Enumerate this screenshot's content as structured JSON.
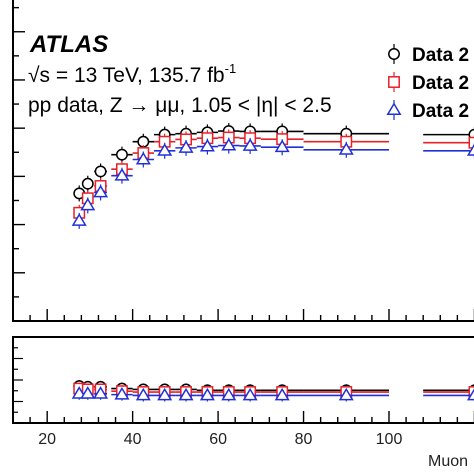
{
  "chart_data": {
    "type": "scatter",
    "title": "",
    "experiment": "ATLAS",
    "info_line1": "√s = 13 TeV, 135.7 fb",
    "info_line1_superscript": "-1",
    "info_line2": "pp data, Z → μμ, 1.05 < |η| < 2.5",
    "xlabel": "Muon",
    "xlim": [
      12,
      122
    ],
    "x_ticks": [
      20,
      40,
      60,
      80,
      100
    ],
    "upper_ylim": [
      0,
      1
    ],
    "lower_ylim": [
      0,
      1
    ],
    "grid": false,
    "legend_position": "top-right",
    "series": [
      {
        "name": "Data 2",
        "marker": "circle",
        "color": "#000000",
        "x": [
          27.5,
          29.5,
          32.5,
          37.5,
          42.5,
          47.5,
          52.5,
          57.5,
          62.5,
          67.5,
          75,
          90,
          120
        ],
        "x_err": [
          1,
          1,
          1.5,
          2.5,
          2.5,
          2.5,
          2.5,
          2.5,
          2.5,
          2.5,
          5,
          10,
          12
        ],
        "values": [
          0.395,
          0.425,
          0.463,
          0.515,
          0.555,
          0.577,
          0.58,
          0.584,
          0.588,
          0.587,
          0.587,
          0.58,
          0.577
        ],
        "ratio": [
          0.43,
          0.42,
          0.42,
          0.4,
          0.39,
          0.39,
          0.39,
          0.38,
          0.38,
          0.38,
          0.38,
          0.38,
          0.38
        ]
      },
      {
        "name": "Data 2",
        "marker": "square",
        "color": "#e8202a",
        "x": [
          27.5,
          29.5,
          32.5,
          37.5,
          42.5,
          47.5,
          52.5,
          57.5,
          62.5,
          67.5,
          75,
          90,
          120
        ],
        "x_err": [
          1,
          1,
          1.5,
          2.5,
          2.5,
          2.5,
          2.5,
          2.5,
          2.5,
          2.5,
          5,
          10,
          12
        ],
        "values": [
          0.335,
          0.38,
          0.418,
          0.47,
          0.52,
          0.555,
          0.562,
          0.566,
          0.568,
          0.566,
          0.563,
          0.555,
          0.552
        ],
        "ratio": [
          0.4,
          0.39,
          0.39,
          0.37,
          0.36,
          0.36,
          0.36,
          0.36,
          0.36,
          0.36,
          0.36,
          0.36,
          0.36
        ]
      },
      {
        "name": "Data 2",
        "marker": "triangle",
        "color": "#2030d8",
        "x": [
          27.5,
          29.5,
          32.5,
          37.5,
          42.5,
          47.5,
          52.5,
          57.5,
          62.5,
          67.5,
          75,
          90,
          120
        ],
        "x_err": [
          1,
          1,
          1.5,
          2.5,
          2.5,
          2.5,
          2.5,
          2.5,
          2.5,
          2.5,
          5,
          10,
          12
        ],
        "values": [
          0.31,
          0.358,
          0.398,
          0.45,
          0.5,
          0.527,
          0.536,
          0.54,
          0.543,
          0.542,
          0.538,
          0.53,
          0.527
        ],
        "ratio": [
          0.34,
          0.34,
          0.34,
          0.33,
          0.32,
          0.32,
          0.32,
          0.32,
          0.32,
          0.32,
          0.32,
          0.32,
          0.32
        ]
      }
    ]
  }
}
